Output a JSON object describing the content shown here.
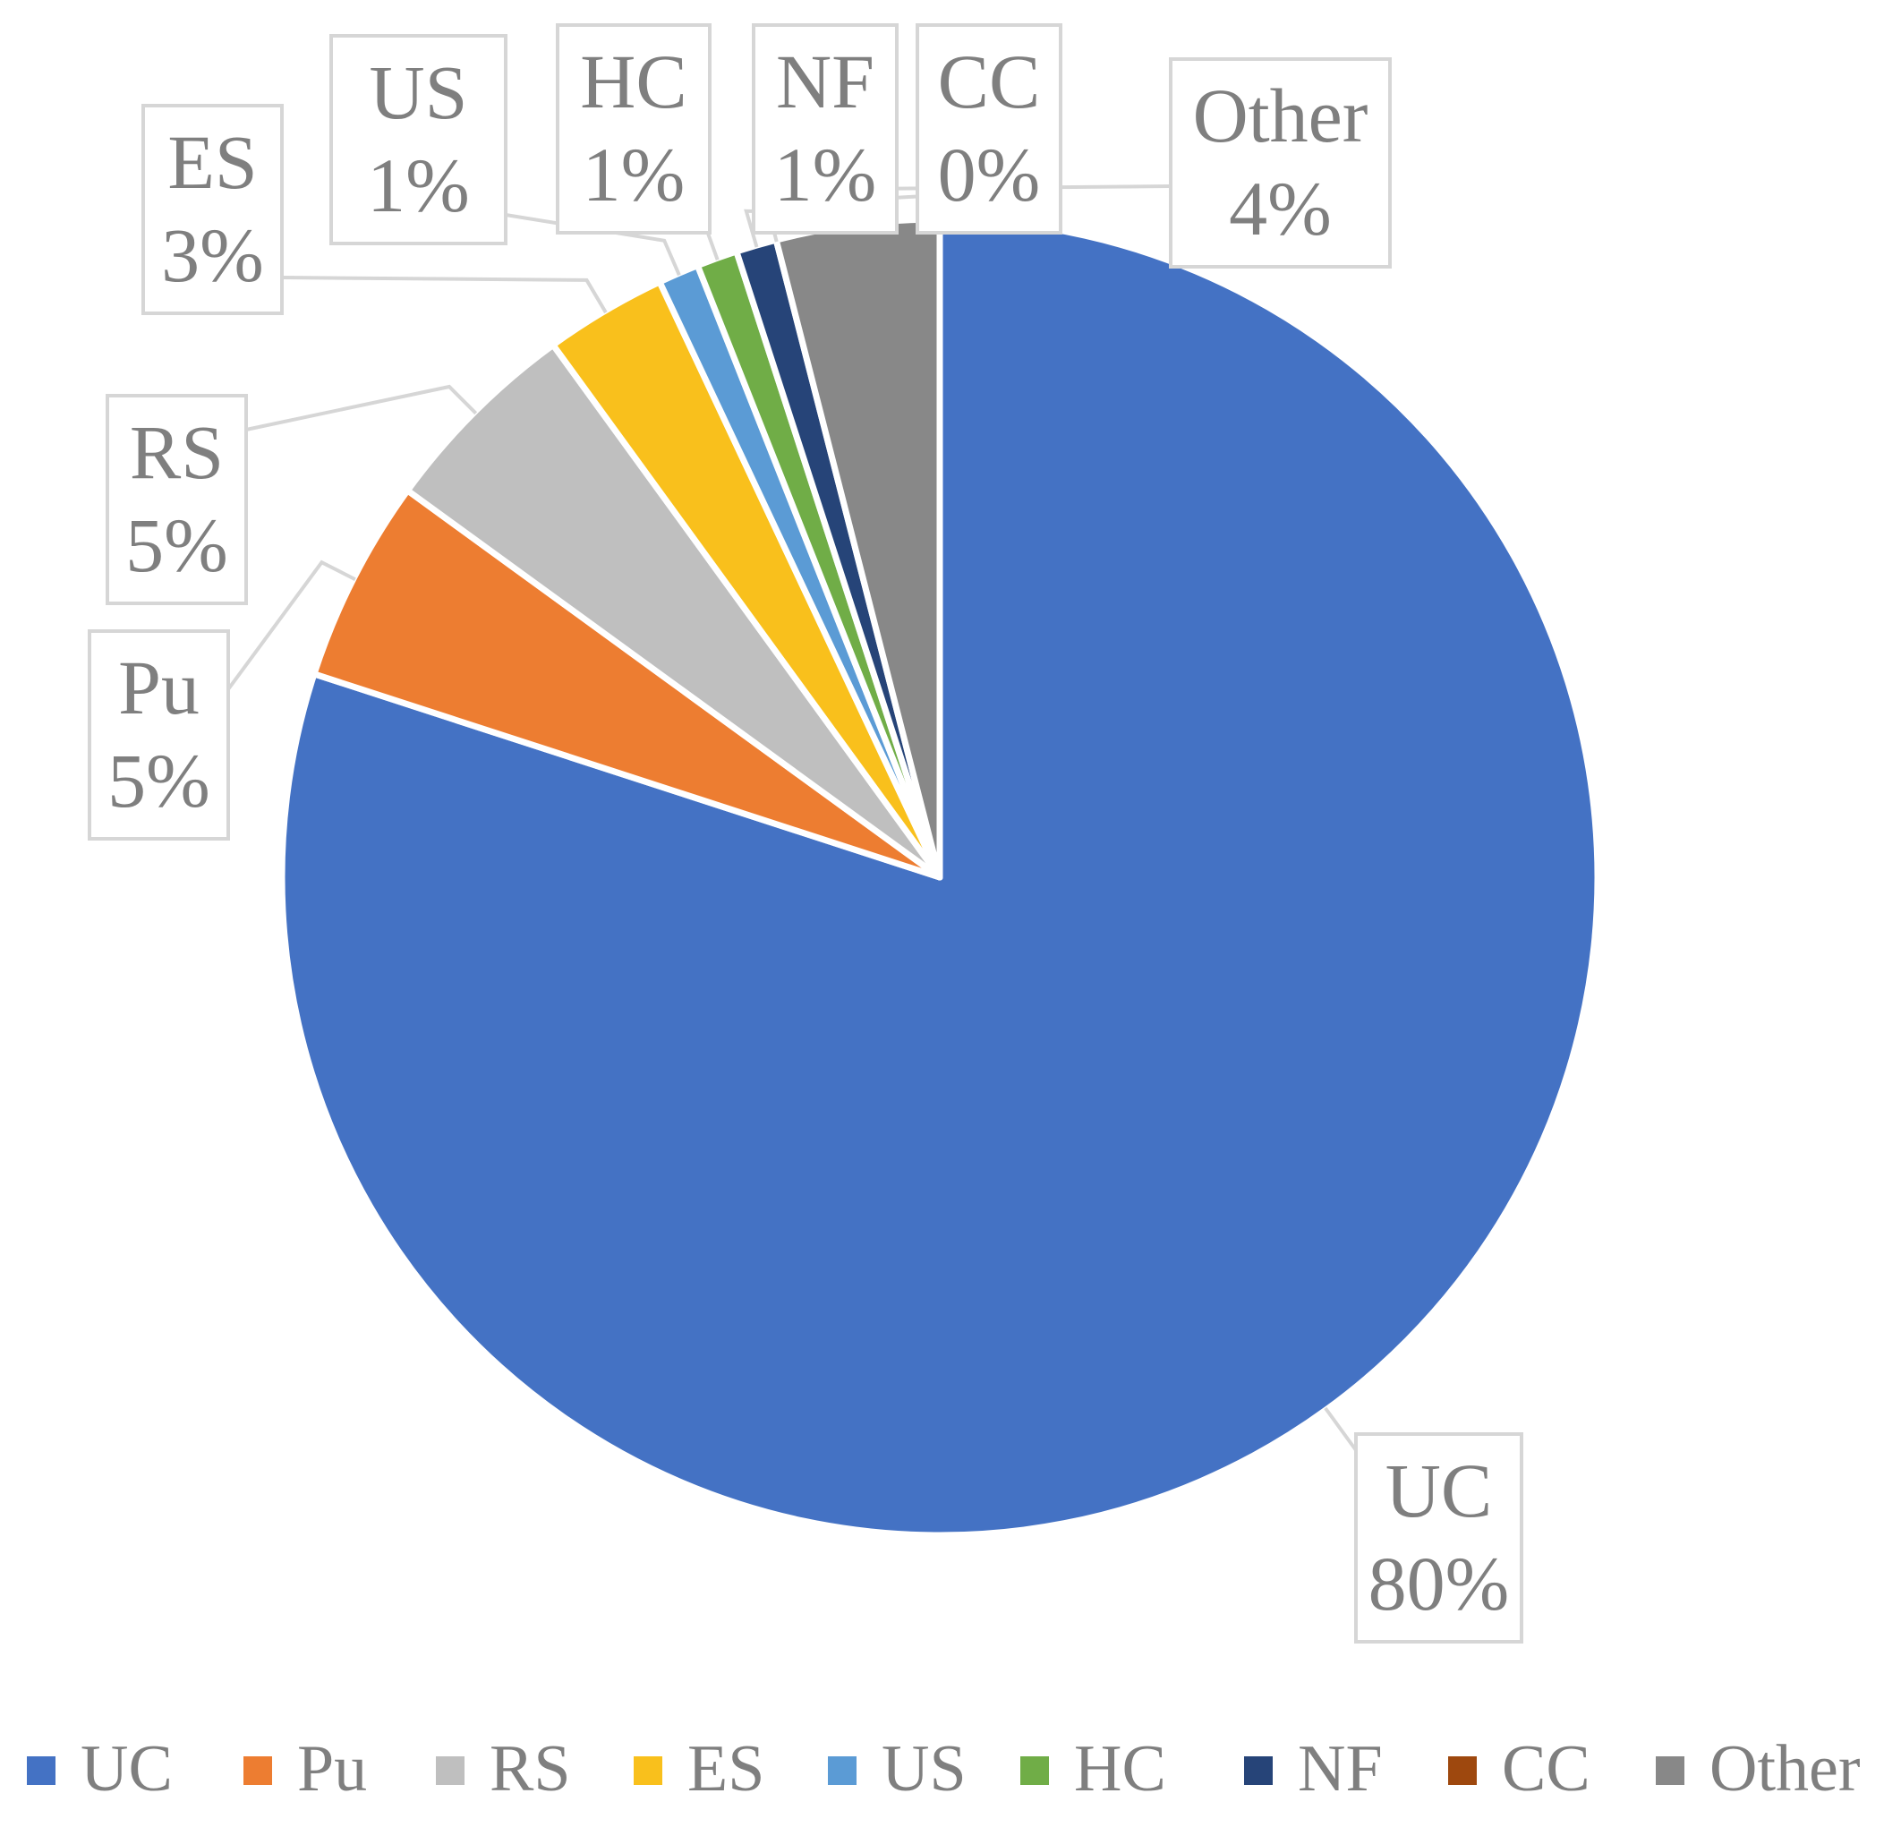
{
  "chart_data": {
    "type": "pie",
    "title": "",
    "legend_position": "bottom",
    "slices": [
      {
        "name": "UC",
        "value": 80,
        "label": "80%",
        "color": "#4472C4"
      },
      {
        "name": "Pu",
        "value": 5,
        "label": "5%",
        "color": "#ED7D31"
      },
      {
        "name": "RS",
        "value": 5,
        "label": "5%",
        "color": "#BFBFBF"
      },
      {
        "name": "ES",
        "value": 3,
        "label": "3%",
        "color": "#F9C01C"
      },
      {
        "name": "US",
        "value": 1,
        "label": "1%",
        "color": "#5B9BD5"
      },
      {
        "name": "HC",
        "value": 1,
        "label": "1%",
        "color": "#70AD47"
      },
      {
        "name": "NF",
        "value": 1,
        "label": "1%",
        "color": "#264478"
      },
      {
        "name": "CC",
        "value": 0,
        "label": "0%",
        "color": "#9E480E"
      },
      {
        "name": "Other",
        "value": 4,
        "label": "4%",
        "color": "#888888"
      }
    ]
  }
}
